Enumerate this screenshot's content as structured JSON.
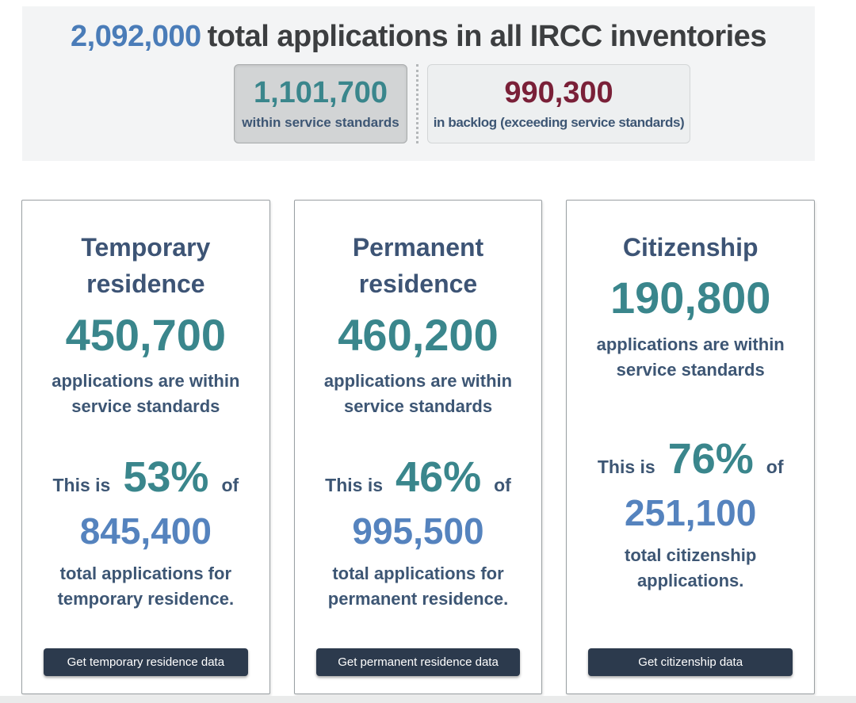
{
  "header": {
    "total_value": "2,092,000",
    "total_label": "total applications in all IRCC inventories",
    "within_box": {
      "value": "1,101,700",
      "label": "within service standards"
    },
    "backlog_box": {
      "value": "990,300",
      "label": "in backlog (exceeding service standards)"
    }
  },
  "cards": [
    {
      "title": "Temporary residence",
      "within_value": "450,700",
      "within_label": "applications are within service standards",
      "percent_prefix": "This is",
      "percent": "53%",
      "percent_suffix": "of",
      "total_value": "845,400",
      "total_label": "total applications for temporary residence.",
      "button_label": "Get temporary residence data"
    },
    {
      "title": "Permanent residence",
      "within_value": "460,200",
      "within_label": "applications are within service standards",
      "percent_prefix": "This is",
      "percent": "46%",
      "percent_suffix": "of",
      "total_value": "995,500",
      "total_label": "total applications for permanent residence.",
      "button_label": "Get permanent residence data"
    },
    {
      "title": "Citizenship",
      "within_value": "190,800",
      "within_label": "applications are within service standards",
      "percent_prefix": "This is",
      "percent": "76%",
      "percent_suffix": "of",
      "total_value": "251,100",
      "total_label": "total citizenship applications.",
      "button_label": "Get citizenship data"
    }
  ],
  "colors": {
    "header_blue": "#4a7cb8",
    "teal": "#3a868c",
    "maroon": "#7a2038",
    "steel_blue": "#5583be",
    "navy": "#3d5674",
    "button_bg": "#2c3a4d",
    "panel_bg": "#f3f4f5",
    "within_box_bg": "#d2d4d5",
    "backlog_box_bg": "#edeff0"
  }
}
